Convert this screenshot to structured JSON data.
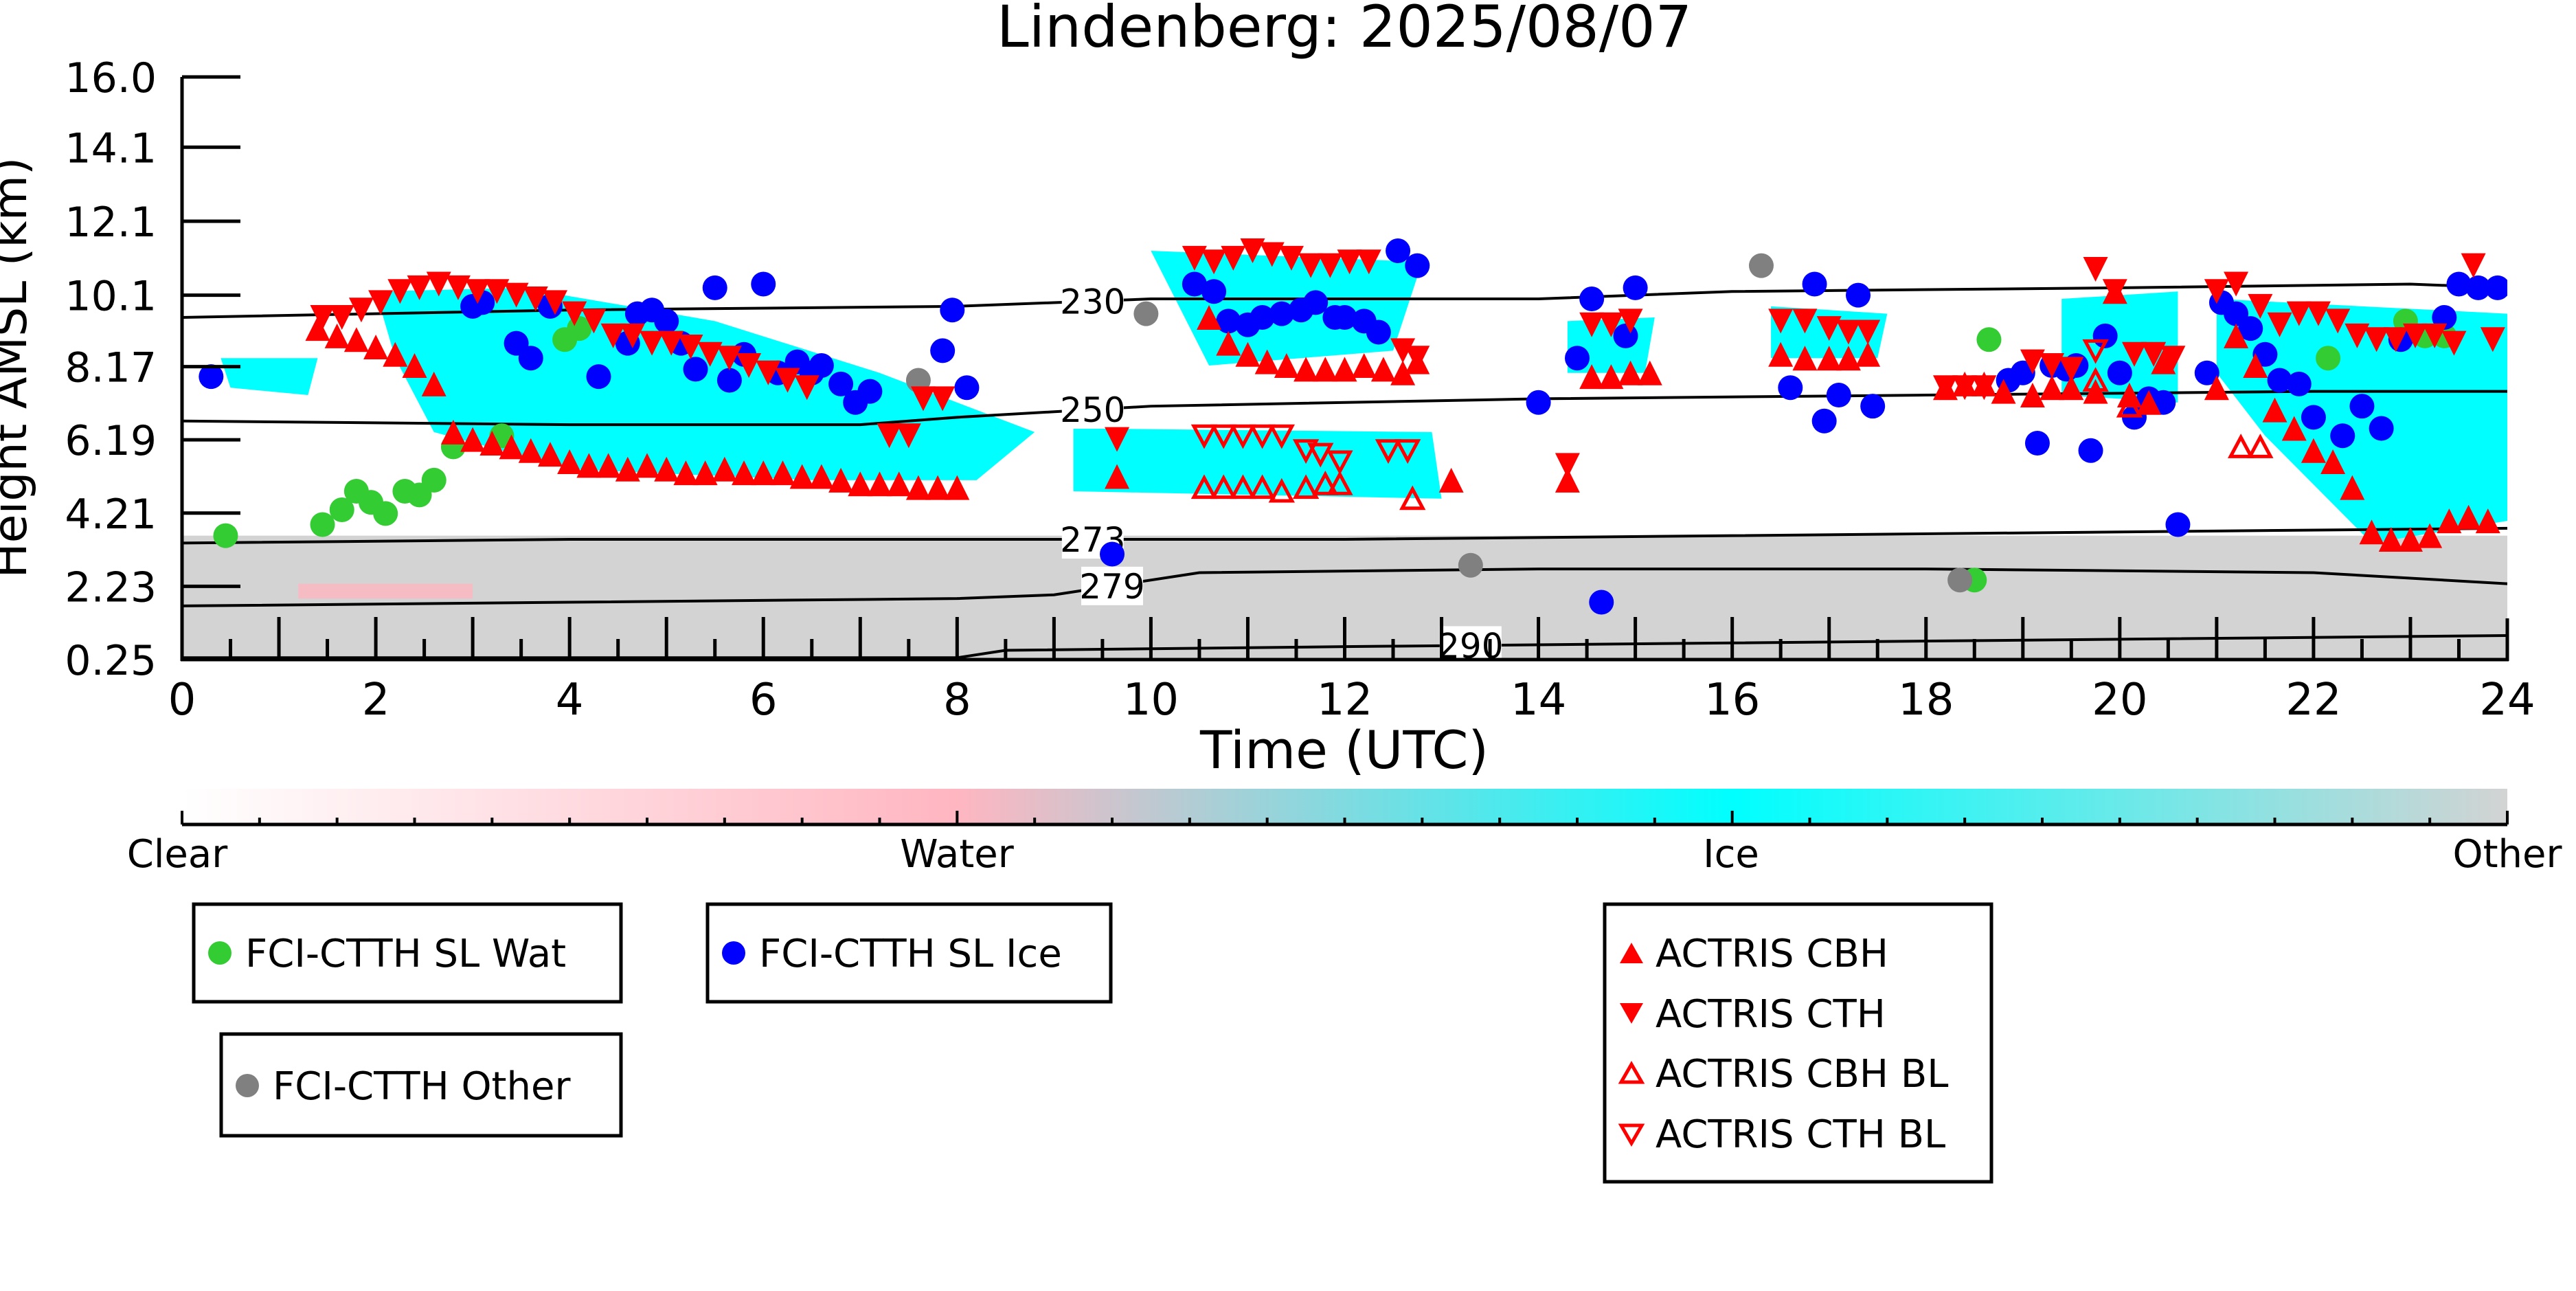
{
  "chart_data": {
    "type": "scatter",
    "title": "Lindenberg: 2025/08/07",
    "xlabel": "Time (UTC)",
    "ylabel": "Height AMSL (km)",
    "xlim": [
      0,
      24
    ],
    "ylim": [
      0.25,
      16.0
    ],
    "x_ticks": [
      "0",
      "2",
      "4",
      "6",
      "8",
      "10",
      "12",
      "14",
      "16",
      "18",
      "20",
      "22",
      "24"
    ],
    "y_ticks": [
      "0.25",
      "2.23",
      "4.21",
      "6.19",
      "8.17",
      "10.1",
      "12.1",
      "14.1",
      "16.0"
    ],
    "y_tick_values": [
      0.25,
      2.23,
      4.21,
      6.19,
      8.17,
      10.1,
      12.1,
      14.1,
      16.0
    ],
    "colorbar": {
      "labels": [
        "Clear",
        "Water",
        "Ice",
        "Other"
      ],
      "colors": [
        "#ffffff",
        "#ffb6c1",
        "#00ffff",
        "#d3d3d3"
      ]
    },
    "contours": [
      {
        "label": "230",
        "label_x": 9.4,
        "points": [
          [
            0,
            9.5
          ],
          [
            4,
            9.7
          ],
          [
            8,
            9.8
          ],
          [
            10,
            10.0
          ],
          [
            14,
            10.0
          ],
          [
            16,
            10.2
          ],
          [
            20,
            10.3
          ],
          [
            23,
            10.4
          ],
          [
            24,
            10.3
          ]
        ]
      },
      {
        "label": "250",
        "label_x": 9.4,
        "points": [
          [
            0,
            6.7
          ],
          [
            4,
            6.6
          ],
          [
            7,
            6.6
          ],
          [
            8,
            6.8
          ],
          [
            10,
            7.1
          ],
          [
            14,
            7.3
          ],
          [
            18,
            7.4
          ],
          [
            22,
            7.5
          ],
          [
            24,
            7.5
          ]
        ]
      },
      {
        "label": "273",
        "label_x": 9.4,
        "points": [
          [
            0,
            3.4
          ],
          [
            4,
            3.5
          ],
          [
            8,
            3.5
          ],
          [
            12,
            3.5
          ],
          [
            16,
            3.6
          ],
          [
            20,
            3.7
          ],
          [
            24,
            3.8
          ]
        ]
      },
      {
        "label": "279",
        "label_x": 9.6,
        "points": [
          [
            0,
            1.7
          ],
          [
            4,
            1.8
          ],
          [
            8,
            1.9
          ],
          [
            9,
            2.0
          ],
          [
            10.5,
            2.6
          ],
          [
            14,
            2.7
          ],
          [
            18,
            2.7
          ],
          [
            22,
            2.6
          ],
          [
            24,
            2.3
          ]
        ]
      },
      {
        "label": "290",
        "label_x": 13.3,
        "points": [
          [
            0,
            0.3
          ],
          [
            8,
            0.3
          ],
          [
            8.5,
            0.5
          ],
          [
            12,
            0.6
          ],
          [
            16,
            0.7
          ],
          [
            20,
            0.8
          ],
          [
            24,
            0.9
          ]
        ]
      }
    ],
    "series": [
      {
        "name": "FCI-CTTH SL Wat",
        "color": "#33cc33",
        "marker": "circle",
        "x": [
          0.45,
          1.45,
          1.65,
          1.8,
          1.95,
          2.1,
          2.3,
          2.45,
          2.6,
          2.8,
          3.3,
          3.95,
          4.1,
          18.5,
          18.65,
          22.15,
          22.95,
          23.15,
          23.35
        ],
        "y": [
          3.6,
          3.9,
          4.3,
          4.8,
          4.5,
          4.2,
          4.8,
          4.7,
          5.1,
          6.0,
          6.3,
          8.9,
          9.2,
          2.4,
          8.9,
          8.4,
          9.4,
          9.0,
          9.0
        ]
      },
      {
        "name": "FCI-CTTH SL Ice",
        "color": "#0000ff",
        "marker": "circle",
        "x": [
          0.3,
          3.0,
          3.1,
          3.45,
          3.6,
          3.8,
          4.3,
          4.6,
          4.7,
          4.85,
          5.0,
          5.15,
          5.3,
          5.5,
          5.65,
          5.8,
          6.0,
          6.15,
          6.35,
          6.5,
          6.6,
          6.8,
          6.95,
          7.1,
          7.85,
          7.95,
          8.1,
          9.6,
          10.45,
          10.65,
          10.8,
          11.0,
          11.15,
          11.35,
          11.55,
          11.7,
          11.9,
          12.0,
          12.2,
          12.35,
          12.55,
          12.75,
          14.0,
          14.4,
          14.55,
          14.65,
          14.9,
          15.0,
          16.6,
          16.85,
          16.95,
          17.1,
          17.3,
          17.45,
          18.85,
          19.0,
          19.15,
          19.3,
          19.45,
          19.55,
          19.7,
          19.85,
          20.0,
          20.15,
          20.3,
          20.45,
          20.6,
          20.9,
          21.05,
          21.2,
          21.35,
          21.5,
          21.65,
          21.85,
          22.0,
          22.3,
          22.5,
          22.7,
          22.9,
          23.35,
          23.5,
          23.7,
          23.9
        ],
        "y": [
          7.9,
          9.8,
          9.9,
          8.8,
          8.4,
          9.8,
          7.9,
          8.8,
          9.6,
          9.7,
          9.4,
          8.8,
          8.1,
          10.3,
          7.8,
          8.5,
          10.4,
          8.0,
          8.3,
          8.0,
          8.2,
          7.7,
          7.2,
          7.5,
          8.6,
          9.7,
          7.6,
          3.1,
          10.4,
          10.2,
          9.4,
          9.3,
          9.5,
          9.6,
          9.7,
          9.9,
          9.5,
          9.5,
          9.4,
          9.1,
          11.3,
          10.9,
          7.2,
          8.4,
          10.0,
          1.8,
          9.0,
          10.3,
          7.6,
          10.4,
          6.7,
          7.4,
          10.1,
          7.1,
          7.8,
          8.0,
          6.1,
          8.2,
          8.1,
          8.2,
          5.9,
          9.0,
          8.0,
          6.8,
          7.3,
          7.2,
          3.9,
          8.0,
          9.9,
          9.6,
          9.2,
          8.5,
          7.8,
          7.7,
          6.8,
          6.3,
          7.1,
          6.5,
          8.9,
          9.5,
          10.4,
          10.3,
          10.3
        ],
        "_": ""
      },
      {
        "name": "FCI-CTTH Other",
        "color": "#808080",
        "marker": "circle",
        "x": [
          7.6,
          9.95,
          13.3,
          16.3,
          18.35
        ],
        "y": [
          7.8,
          9.6,
          2.8,
          10.9,
          2.4
        ]
      },
      {
        "name": "ACTRIS CBH",
        "color": "#ff0000",
        "marker": "triangle-up",
        "x": [
          1.4,
          1.6,
          1.8,
          2.0,
          2.2,
          2.4,
          2.6,
          2.8,
          3.0,
          3.2,
          3.4,
          3.6,
          3.8,
          4.0,
          4.2,
          4.4,
          4.6,
          4.8,
          5.0,
          5.2,
          5.4,
          5.6,
          5.8,
          6.0,
          6.2,
          6.4,
          6.6,
          6.8,
          7.0,
          7.2,
          7.4,
          7.6,
          7.8,
          8.0,
          9.65,
          10.6,
          10.8,
          11.0,
          11.2,
          11.4,
          11.6,
          11.8,
          12.0,
          12.2,
          12.4,
          12.6,
          12.75,
          13.1,
          14.3,
          14.55,
          14.75,
          14.95,
          15.15,
          16.5,
          16.75,
          17.0,
          17.2,
          17.4,
          18.2,
          18.4,
          18.6,
          18.8,
          19.1,
          19.3,
          19.5,
          19.75,
          19.95,
          20.1,
          20.3,
          20.45,
          21.0,
          21.2,
          21.4,
          21.6,
          21.8,
          22.0,
          22.2,
          22.4,
          22.6,
          22.8,
          23.0,
          23.2,
          23.4,
          23.6,
          23.8
        ],
        "y": [
          9.2,
          9.0,
          8.9,
          8.7,
          8.5,
          8.2,
          7.7,
          6.4,
          6.2,
          6.1,
          6.0,
          5.9,
          5.8,
          5.6,
          5.5,
          5.5,
          5.4,
          5.5,
          5.4,
          5.3,
          5.3,
          5.4,
          5.3,
          5.3,
          5.3,
          5.2,
          5.2,
          5.1,
          5.0,
          5.0,
          5.0,
          4.9,
          4.9,
          4.9,
          5.2,
          9.5,
          8.8,
          8.5,
          8.3,
          8.2,
          8.1,
          8.1,
          8.1,
          8.2,
          8.1,
          8.0,
          8.3,
          5.1,
          5.1,
          7.9,
          7.9,
          8.0,
          8.0,
          8.5,
          8.4,
          8.4,
          8.4,
          8.5,
          7.6,
          7.7,
          7.7,
          7.5,
          7.4,
          7.6,
          7.6,
          7.5,
          10.2,
          7.4,
          7.2,
          8.3,
          7.6,
          9.0,
          8.2,
          7.0,
          6.5,
          5.9,
          5.6,
          4.9,
          3.7,
          3.5,
          3.5,
          3.6,
          4.0,
          4.1,
          4.0
        ]
      },
      {
        "name": "ACTRIS CTH",
        "color": "#ff0000",
        "marker": "triangle-down",
        "x": [
          1.45,
          1.65,
          1.85,
          2.05,
          2.25,
          2.45,
          2.65,
          2.85,
          3.05,
          3.25,
          3.45,
          3.65,
          3.85,
          4.05,
          4.25,
          4.45,
          4.65,
          4.85,
          5.05,
          5.25,
          5.45,
          5.65,
          5.85,
          6.05,
          6.25,
          6.45,
          7.3,
          7.5,
          7.65,
          7.85,
          9.65,
          10.45,
          10.65,
          10.85,
          11.05,
          11.25,
          11.45,
          11.65,
          11.85,
          12.05,
          12.25,
          12.6,
          12.75,
          14.3,
          14.55,
          14.75,
          14.95,
          16.5,
          16.75,
          17.0,
          17.2,
          17.4,
          18.2,
          18.4,
          18.6,
          19.1,
          19.3,
          19.5,
          19.75,
          19.95,
          20.15,
          20.35,
          20.55,
          21.0,
          21.2,
          21.45,
          21.65,
          21.85,
          22.05,
          22.25,
          22.45,
          22.65,
          22.85,
          23.05,
          23.25,
          23.45,
          23.65,
          23.85
        ],
        "y": [
          9.5,
          9.5,
          9.7,
          9.9,
          10.2,
          10.3,
          10.4,
          10.3,
          10.2,
          10.2,
          10.1,
          10.0,
          9.9,
          9.6,
          9.4,
          9.0,
          9.0,
          8.8,
          8.8,
          8.7,
          8.5,
          8.4,
          8.2,
          8.0,
          7.8,
          7.6,
          6.3,
          6.3,
          7.3,
          7.3,
          6.2,
          11.1,
          11.0,
          11.1,
          11.3,
          11.2,
          11.1,
          10.9,
          10.9,
          11.0,
          11.0,
          8.6,
          8.4,
          5.5,
          9.3,
          9.3,
          9.4,
          9.4,
          9.4,
          9.2,
          9.1,
          9.1,
          7.6,
          7.6,
          7.6,
          8.3,
          8.2,
          8.1,
          10.8,
          10.2,
          8.5,
          8.5,
          8.4,
          10.2,
          10.4,
          9.8,
          9.3,
          9.6,
          9.6,
          9.4,
          9.0,
          8.9,
          8.9,
          9.0,
          9.0,
          8.8,
          10.9,
          8.9
        ]
      },
      {
        "name": "ACTRIS CBH BL",
        "color": "#ff0000",
        "marker": "triangle-up-open",
        "x": [
          10.55,
          10.75,
          10.95,
          11.15,
          11.35,
          11.6,
          11.8,
          11.95,
          12.7,
          19.75,
          20.1,
          21.25,
          21.45
        ],
        "y": [
          4.9,
          4.9,
          4.9,
          4.9,
          4.8,
          4.9,
          5.0,
          5.0,
          4.6,
          7.8,
          7.1,
          6.0,
          6.0
        ],
        "_": ""
      },
      {
        "name": "ACTRIS CTH BL",
        "color": "#ff0000",
        "marker": "triangle-down-open",
        "x": [
          10.55,
          10.75,
          10.95,
          11.15,
          11.35,
          11.6,
          11.75,
          11.95,
          12.45,
          12.65,
          19.75
        ],
        "y": [
          6.3,
          6.3,
          6.3,
          6.3,
          6.3,
          5.9,
          5.8,
          5.6,
          5.9,
          5.9,
          8.6
        ]
      }
    ]
  },
  "legend": {
    "box1": [
      "FCI-CTTH SL Wat"
    ],
    "box2": [
      "FCI-CTTH SL Ice"
    ],
    "box3": [
      "FCI-CTTH Other"
    ],
    "box4": [
      "ACTRIS CBH",
      "ACTRIS CTH",
      "ACTRIS CBH BL",
      "ACTRIS CTH BL"
    ]
  }
}
